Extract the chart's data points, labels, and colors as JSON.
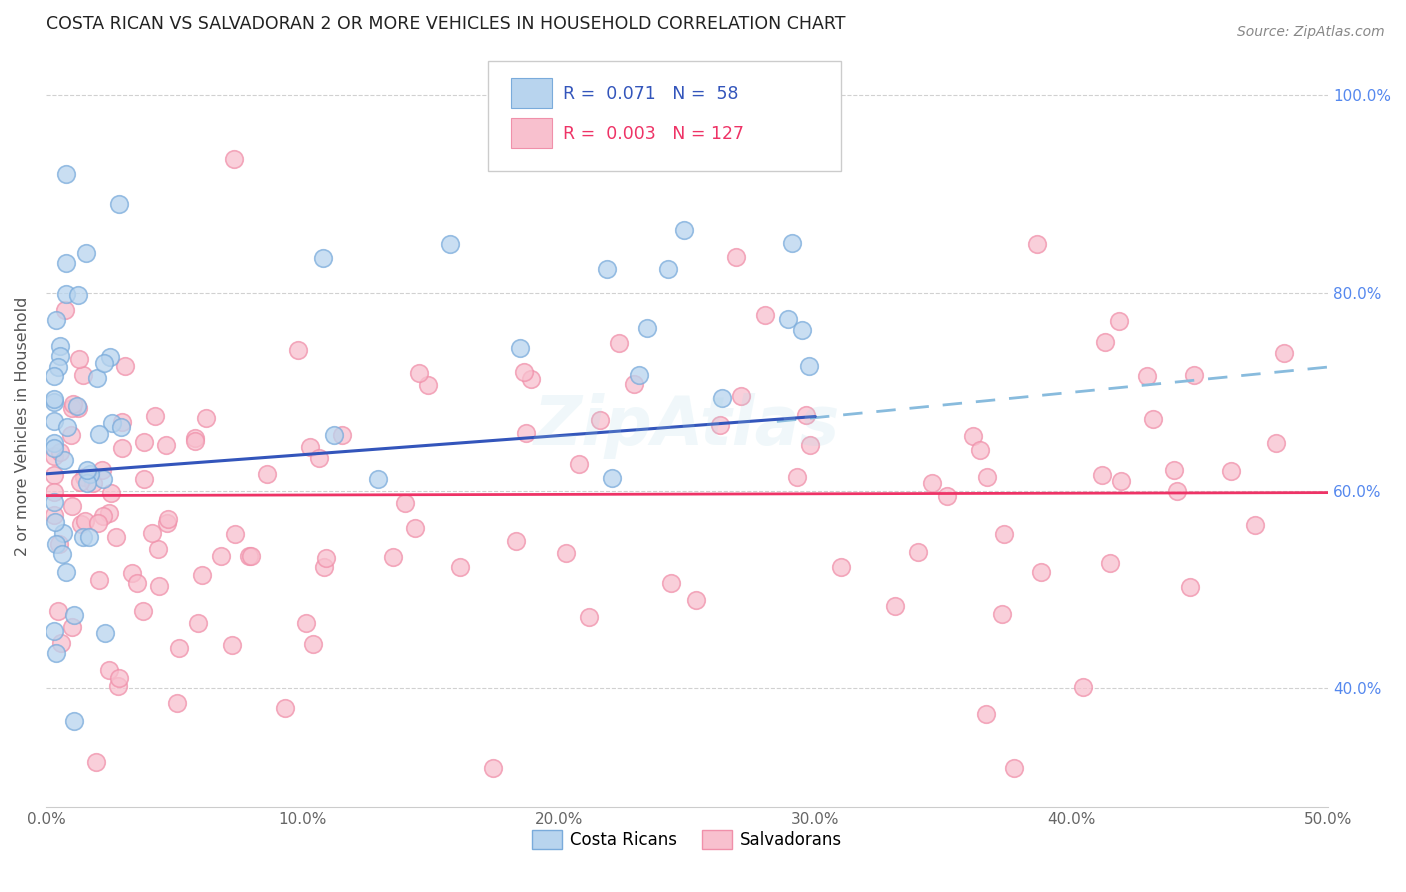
{
  "title": "COSTA RICAN VS SALVADORAN 2 OR MORE VEHICLES IN HOUSEHOLD CORRELATION CHART",
  "source": "Source: ZipAtlas.com",
  "ylabel": "2 or more Vehicles in Household",
  "xlim": [
    0.0,
    0.5
  ],
  "ylim": [
    0.28,
    1.05
  ],
  "xticks": [
    0.0,
    0.1,
    0.2,
    0.3,
    0.4,
    0.5
  ],
  "xticklabels": [
    "0.0%",
    "10.0%",
    "20.0%",
    "30.0%",
    "40.0%",
    "50.0%"
  ],
  "yticks": [
    0.4,
    0.6,
    0.8,
    1.0
  ],
  "yticklabels": [
    "40.0%",
    "60.0%",
    "80.0%",
    "100.0%"
  ],
  "grid_color": "#cccccc",
  "background_color": "#ffffff",
  "costa_rican_face_color": "#b8d4ee",
  "costa_rican_edge_color": "#7aabdb",
  "salvadoran_face_color": "#f8c0ce",
  "salvadoran_edge_color": "#f090aa",
  "costa_rican_line_color": "#3355bb",
  "salvadoran_line_color": "#ee3366",
  "dashed_line_color": "#88bbdd",
  "R_costa_rican": "0.071",
  "N_costa_rican": "58",
  "R_salvadoran": "0.003",
  "N_salvadoran": "127",
  "legend_text_color": "#3355bb",
  "watermark_text": "ZipAtlas",
  "watermark_color": "#add8e6",
  "watermark_alpha": 0.18,
  "cr_line_x0": 0.0,
  "cr_line_y0": 0.617,
  "cr_line_x1": 0.3,
  "cr_line_y1": 0.675,
  "sal_line_x0": 0.0,
  "sal_line_y0": 0.595,
  "sal_line_x1": 0.5,
  "sal_line_y1": 0.598,
  "dash_line_x0": 0.285,
  "dash_line_y0": 0.67,
  "dash_line_x1": 0.5,
  "dash_line_y1": 0.725
}
